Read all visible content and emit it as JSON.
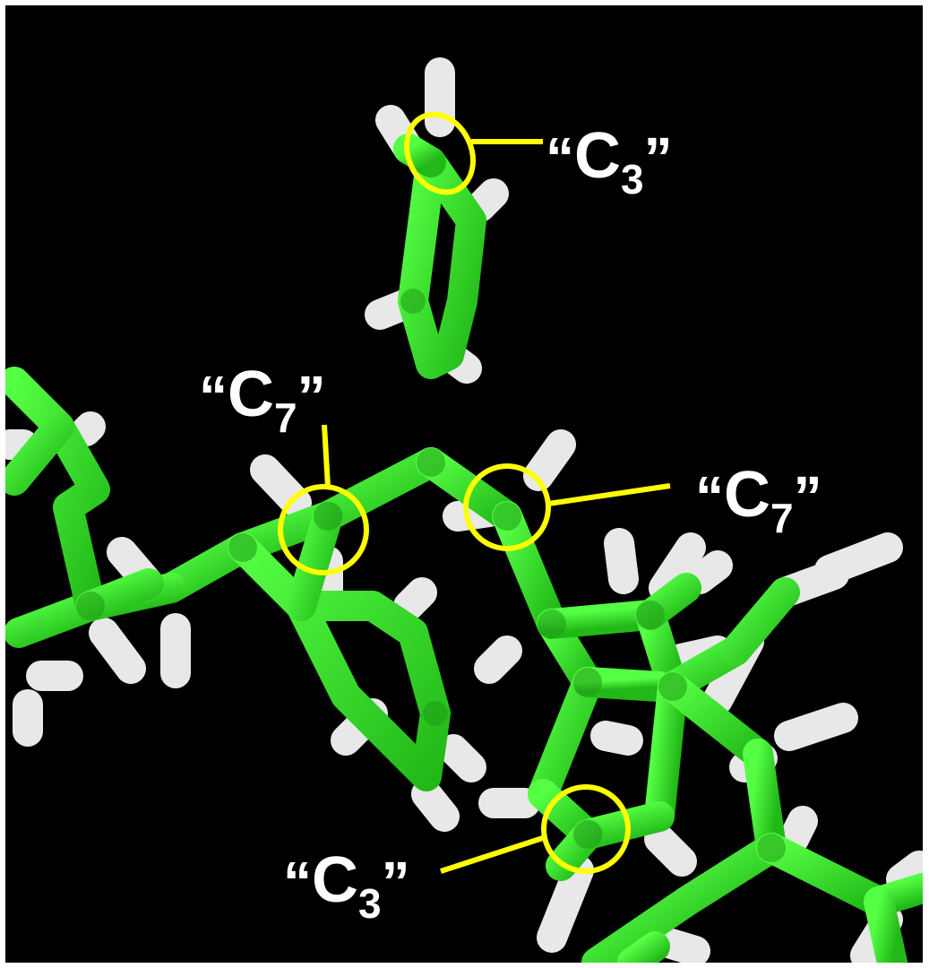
{
  "colors": {
    "background": "#000000",
    "carbon_bond": "#33dd22",
    "carbon_bond_shade": "#1a8a12",
    "hydrogen": "#e6e6e6",
    "hydrogen_shade": "#9a9a9a",
    "callout": "#ffff00",
    "label_text": "#ffffff"
  },
  "annotations": [
    {
      "id": "c3-top",
      "quote_open": "“",
      "atom": "C",
      "subscript": "3",
      "quote_close": "”"
    },
    {
      "id": "c7-left",
      "quote_open": "“",
      "atom": "C",
      "subscript": "7",
      "quote_close": "”"
    },
    {
      "id": "c7-right",
      "quote_open": "“",
      "atom": "C",
      "subscript": "7",
      "quote_close": "”"
    },
    {
      "id": "c3-bottom",
      "quote_open": "“",
      "atom": "C",
      "subscript": "3",
      "quote_close": "”"
    }
  ]
}
